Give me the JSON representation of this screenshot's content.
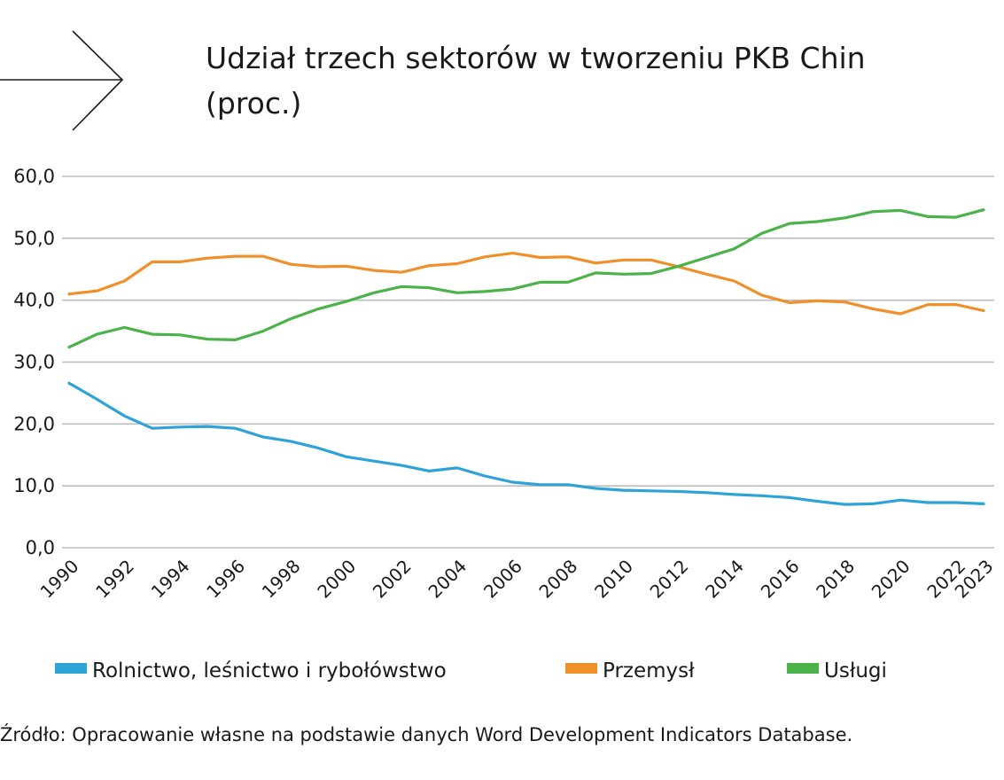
{
  "header": {
    "title_line1": "Udział trzech sektorów w tworzeniu PKB Chin",
    "title_line2": "(proc.)",
    "decor_icon": "arrow-right-icon"
  },
  "source_note": "Źródło: Opracowanie własne na podstawie danych Word Development Indicators Database.",
  "chart_data": {
    "type": "line",
    "title": "Udział trzech sektorów w tworzeniu PKB Chin (proc.)",
    "xlabel": "",
    "ylabel": "",
    "ylim": [
      0,
      60
    ],
    "y_ticks": [
      "0,0",
      "10,0",
      "20,0",
      "30,0",
      "40,0",
      "50,0",
      "60,0"
    ],
    "y_tick_values": [
      0,
      10,
      20,
      30,
      40,
      50,
      60
    ],
    "x_tick_labels": [
      "1990",
      "1992",
      "1994",
      "1996",
      "1998",
      "2000",
      "2002",
      "2004",
      "2006",
      "2008",
      "2010",
      "2012",
      "2014",
      "2016",
      "2018",
      "2020",
      "2022",
      "2023"
    ],
    "grid": true,
    "legend_position": "bottom",
    "x": [
      1990,
      1991,
      1992,
      1993,
      1994,
      1995,
      1996,
      1997,
      1998,
      1999,
      2000,
      2001,
      2002,
      2003,
      2004,
      2005,
      2006,
      2007,
      2008,
      2009,
      2010,
      2011,
      2012,
      2013,
      2014,
      2015,
      2016,
      2017,
      2018,
      2019,
      2020,
      2021,
      2022,
      2023
    ],
    "series": [
      {
        "name": "Rolnictwo, leśnictwo i rybołówstwo",
        "color": "#2ea3d8",
        "values": [
          26.6,
          24.0,
          21.3,
          19.3,
          19.5,
          19.6,
          19.3,
          17.9,
          17.2,
          16.1,
          14.7,
          14.0,
          13.3,
          12.4,
          12.9,
          11.6,
          10.6,
          10.2,
          10.2,
          9.6,
          9.3,
          9.2,
          9.1,
          8.9,
          8.6,
          8.4,
          8.1,
          7.5,
          7.0,
          7.1,
          7.7,
          7.3,
          7.3,
          7.1
        ]
      },
      {
        "name": "Przemysł",
        "color": "#f0902a",
        "values": [
          41.0,
          41.5,
          43.1,
          46.2,
          46.2,
          46.8,
          47.1,
          47.1,
          45.8,
          45.4,
          45.5,
          44.8,
          44.5,
          45.6,
          45.9,
          47.0,
          47.6,
          46.9,
          47.0,
          46.0,
          46.5,
          46.5,
          45.4,
          44.2,
          43.1,
          40.8,
          39.6,
          39.9,
          39.7,
          38.6,
          37.8,
          39.3,
          39.3,
          38.3
        ]
      },
      {
        "name": "Usługi",
        "color": "#4cb24a",
        "values": [
          32.4,
          34.5,
          35.6,
          34.5,
          34.4,
          33.7,
          33.6,
          35.0,
          37.0,
          38.6,
          39.8,
          41.2,
          42.2,
          42.0,
          41.2,
          41.4,
          41.8,
          42.9,
          42.9,
          44.4,
          44.2,
          44.3,
          45.5,
          46.9,
          48.3,
          50.8,
          52.4,
          52.7,
          53.3,
          54.3,
          54.5,
          53.5,
          53.4,
          54.6
        ]
      }
    ]
  }
}
